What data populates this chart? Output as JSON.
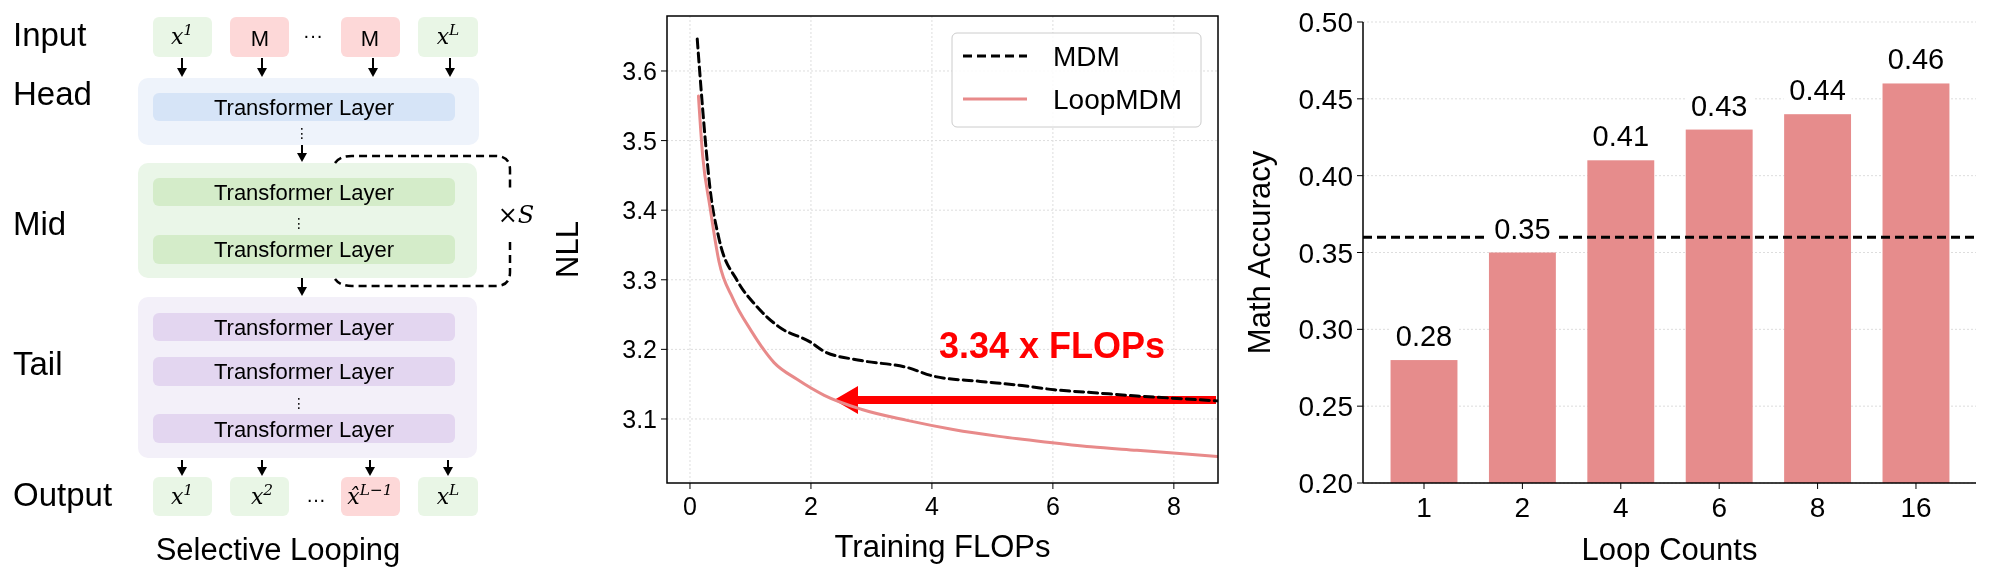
{
  "chart_data": [
    {
      "type": "other",
      "title": "Selective Looping",
      "annotations": [
        "Input",
        "Head",
        "Mid",
        "Tail",
        "Output",
        "x$^{1}$",
        "M",
        "···",
        "M",
        "x$^{L}$",
        "Transformer Layer",
        "⋮",
        "Transformer Layer",
        "⋮",
        "Transformer Layer",
        "×S",
        "Transformer Layer",
        "Transformer Layer",
        "⋮",
        "Transformer Layer",
        "x$^{1}$",
        "x$^{2}$",
        "…",
        "x̂$^{L−1}$",
        "x$^{L}$"
      ]
    },
    {
      "type": "line",
      "xlabel": "Training FLOPs",
      "ylabel": "NLL",
      "xlim": [
        -0.38,
        8.73
      ],
      "ylim": [
        3.008,
        3.679
      ],
      "xticks": [
        0,
        2,
        4,
        6,
        8
      ],
      "yticks": [
        3.1,
        3.2,
        3.3,
        3.4,
        3.5,
        3.6
      ],
      "grid": true,
      "legend": "top right",
      "series": [
        {
          "name": "MDM",
          "color": "#000000",
          "line_style": "dashed",
          "x": [
            0.12,
            0.16,
            0.25,
            0.33,
            0.48,
            0.78,
            1.09,
            1.46,
            2.0,
            2.22,
            2.83,
            3.59,
            4.05,
            4.8,
            5.49,
            6.02,
            6.63,
            7.39,
            8.15,
            8.72
          ],
          "values": [
            3.646,
            3.6,
            3.504,
            3.432,
            3.359,
            3.299,
            3.263,
            3.233,
            3.21,
            3.197,
            3.184,
            3.174,
            3.161,
            3.154,
            3.148,
            3.142,
            3.138,
            3.133,
            3.129,
            3.126
          ]
        },
        {
          "name": "LoopMDM",
          "color": "#e88a8a",
          "line_style": "solid",
          "x": [
            0.14,
            0.21,
            0.33,
            0.48,
            0.71,
            1.01,
            1.39,
            1.77,
            2.22,
            2.83,
            3.59,
            4.35,
            5.11,
            5.87,
            6.63,
            7.39,
            8.15,
            8.72
          ],
          "values": [
            3.564,
            3.478,
            3.405,
            3.326,
            3.273,
            3.227,
            3.181,
            3.157,
            3.134,
            3.114,
            3.098,
            3.085,
            3.075,
            3.067,
            3.06,
            3.055,
            3.05,
            3.046
          ]
        }
      ],
      "annotations": [
        "3.34 x FLOPs"
      ]
    },
    {
      "type": "bar",
      "xlabel": "Loop Counts",
      "ylabel": "Math Accuracy",
      "categories": [
        "1",
        "2",
        "4",
        "6",
        "8",
        "16"
      ],
      "values": [
        0.28,
        0.35,
        0.41,
        0.43,
        0.44,
        0.46
      ],
      "color": "#e68c8c",
      "data_labels": true,
      "ylim": [
        0.2,
        0.5
      ],
      "yticks": [
        {
          "value": 0.2,
          "label": "0.20"
        },
        {
          "value": 0.25,
          "label": "0.25"
        },
        {
          "value": 0.3,
          "label": "0.30"
        },
        {
          "value": 0.35,
          "label": "0.35"
        },
        {
          "value": 0.4,
          "label": "0.40"
        },
        {
          "value": 0.45,
          "label": "0.45"
        },
        {
          "value": 0.5,
          "label": "0.50"
        }
      ],
      "grid": "y",
      "ref_lines": [
        {
          "axis": "y",
          "value": 0.36,
          "color": "#000000",
          "line_style": "dashed"
        }
      ]
    }
  ]
}
